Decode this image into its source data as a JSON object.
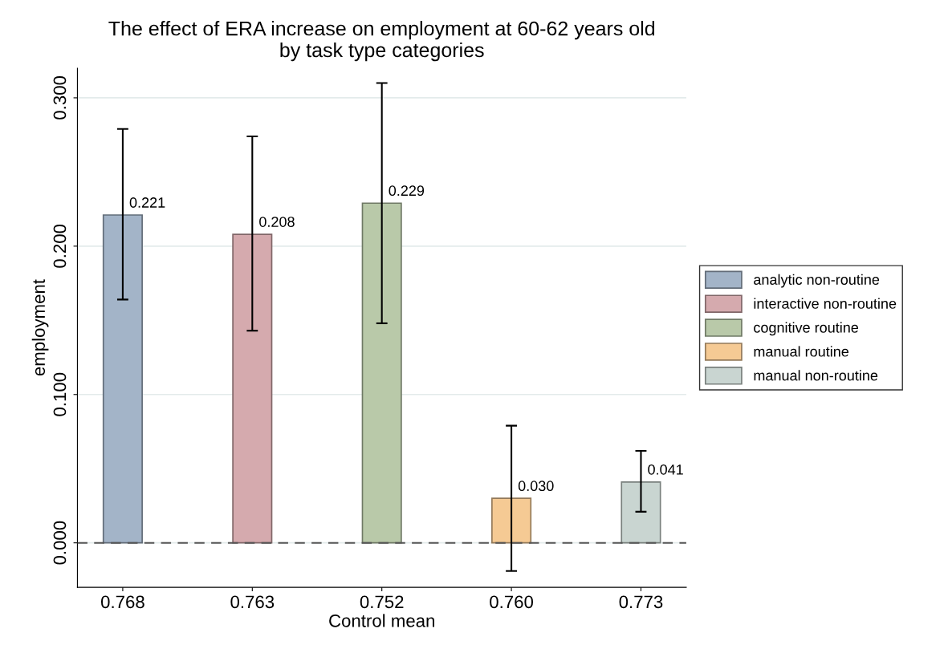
{
  "chart_data": {
    "type": "bar",
    "title": "The effect of ERA increase on employment at 60-62 years old\nby task type categories",
    "xlabel": "Control mean",
    "ylabel": "employment",
    "categories": [
      "0.768",
      "0.763",
      "0.752",
      "0.760",
      "0.773"
    ],
    "series": [
      {
        "name": "analytic non-routine",
        "color": "#a3b4c8",
        "values": [
          0.221,
          null,
          null,
          null,
          null
        ],
        "errors": [
          [
            0.164,
            0.279
          ],
          null,
          null,
          null,
          null
        ],
        "value_labels": [
          "0.221",
          null,
          null,
          null,
          null
        ]
      },
      {
        "name": "interactive non-routine",
        "color": "#d5aaae",
        "values": [
          null,
          0.208,
          null,
          null,
          null
        ],
        "errors": [
          null,
          [
            0.143,
            0.274
          ],
          null,
          null,
          null
        ],
        "value_labels": [
          null,
          "0.208",
          null,
          null,
          null
        ]
      },
      {
        "name": "cognitive routine",
        "color": "#b9c9a9",
        "values": [
          null,
          null,
          0.229,
          null,
          null
        ],
        "errors": [
          null,
          null,
          [
            0.148,
            0.31
          ],
          null,
          null
        ],
        "value_labels": [
          null,
          null,
          "0.229",
          null,
          null
        ]
      },
      {
        "name": "manual routine",
        "color": "#f5ca94",
        "values": [
          null,
          null,
          null,
          0.03,
          null
        ],
        "errors": [
          null,
          null,
          null,
          [
            -0.019,
            0.079
          ],
          null
        ],
        "value_labels": [
          null,
          null,
          null,
          "0.030",
          null
        ]
      },
      {
        "name": "manual non-routine",
        "color": "#c9d5d1",
        "values": [
          null,
          null,
          null,
          null,
          0.041
        ],
        "errors": [
          null,
          null,
          null,
          null,
          [
            0.021,
            0.062
          ]
        ],
        "value_labels": [
          null,
          null,
          null,
          null,
          "0.041"
        ]
      }
    ],
    "ylim": [
      -0.03,
      0.32
    ],
    "yticks": [
      {
        "value": 0,
        "label": "0.000"
      },
      {
        "value": 0.1,
        "label": "0.100"
      },
      {
        "value": 0.2,
        "label": "0.200"
      },
      {
        "value": 0.3,
        "label": "0.300"
      }
    ],
    "ref_lines": [
      {
        "axis": "y",
        "value": 0,
        "label": null,
        "color": "#555555",
        "line_style": "dashed"
      }
    ],
    "grid": "y",
    "legend": "right"
  }
}
